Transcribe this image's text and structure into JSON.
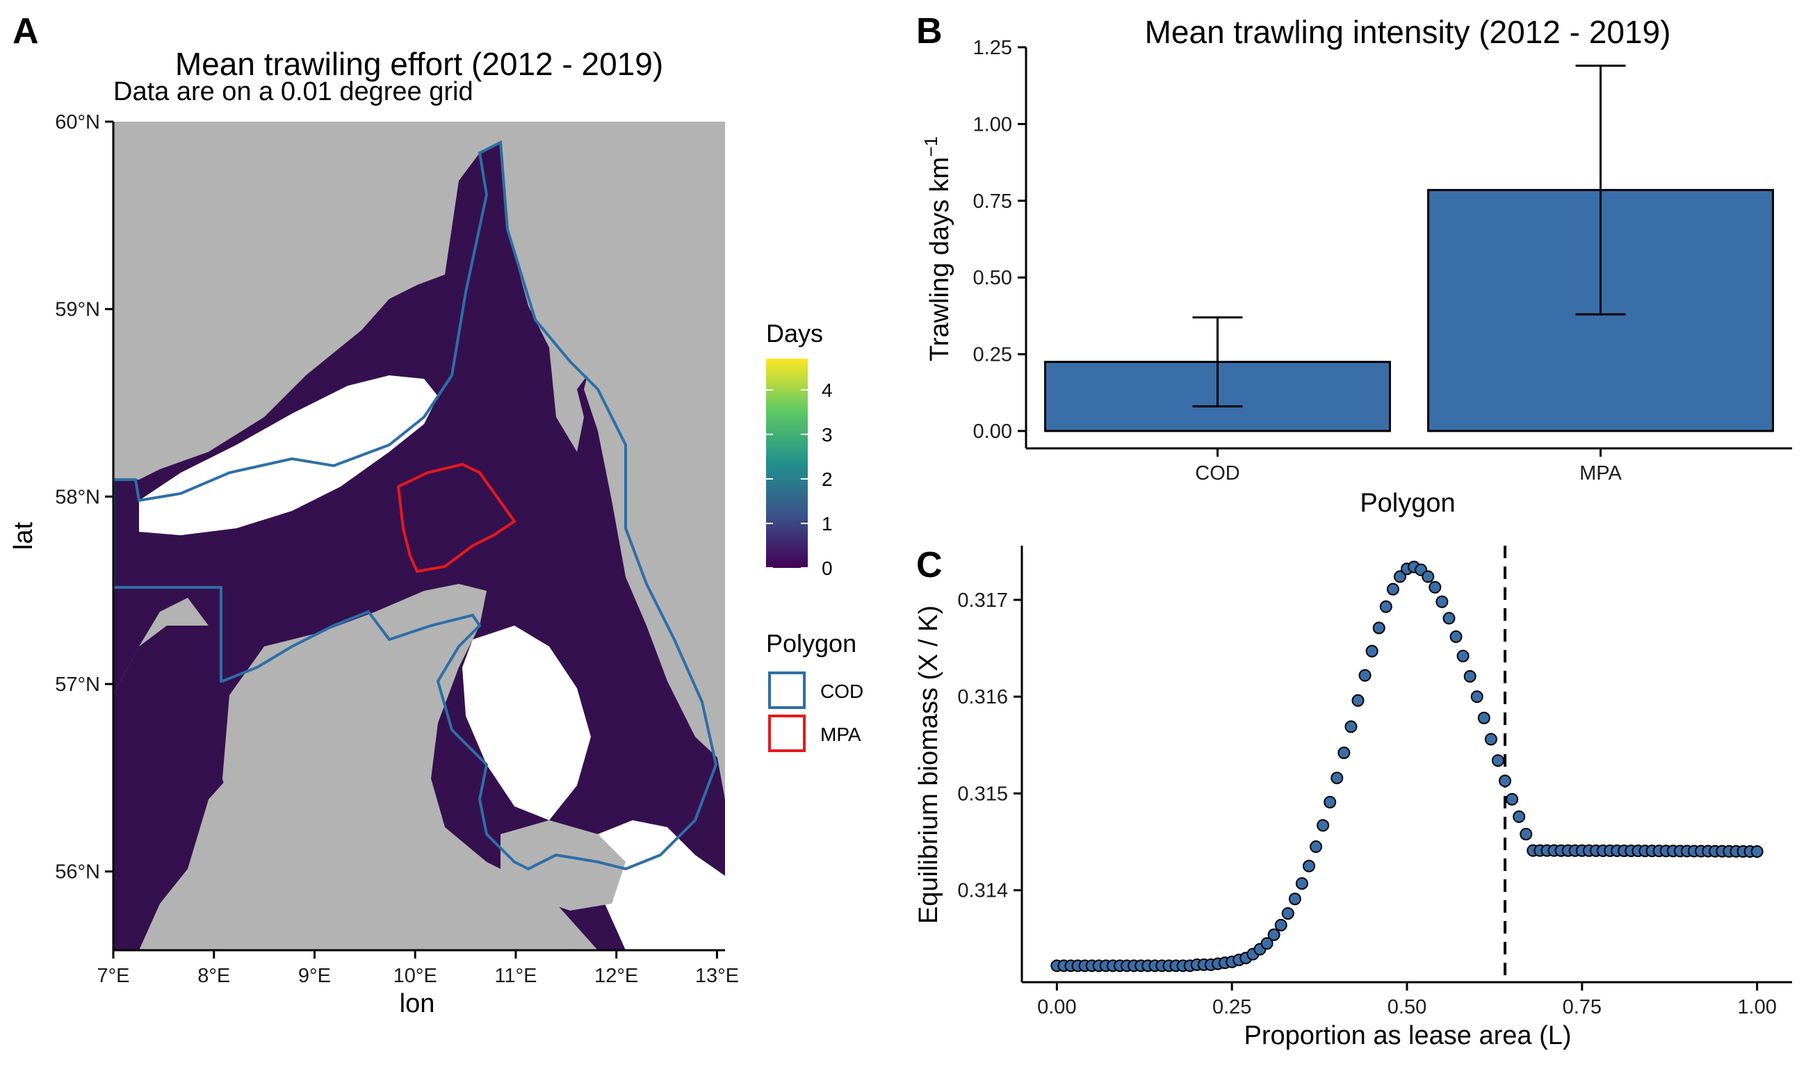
{
  "panels": {
    "A": {
      "letter": "A",
      "title": "Mean trawiling effort (2012 - 2019)",
      "subtitle": "Data are on a 0.01 degree grid",
      "xlabel": "lon",
      "ylabel": "lat",
      "x_ticks": [
        "7°E",
        "8°E",
        "9°E",
        "10°E",
        "11°E",
        "12°E",
        "13°E"
      ],
      "y_ticks": [
        "56°N",
        "57°N",
        "58°N",
        "59°N",
        "60°N"
      ],
      "legend_fill": {
        "title": "Days",
        "ticks": [
          "0",
          "1",
          "2",
          "3",
          "4"
        ],
        "colors": [
          "#440154",
          "#3b528b",
          "#21918c",
          "#5ec962",
          "#fde725"
        ]
      },
      "legend_polygon": {
        "title": "Polygon",
        "items": [
          {
            "label": "COD",
            "color": "#2e6ea6"
          },
          {
            "label": "MPA",
            "color": "#e31a1c"
          }
        ]
      },
      "colors": {
        "land": "#b3b3b3",
        "sea_effort": "#3b0f55",
        "no_data": "#ffffff"
      }
    },
    "B": {
      "letter": "B",
      "title": "Mean trawling intensity (2012 - 2019)",
      "xlabel": "Polygon",
      "ylabel_main": "Trawling days km",
      "ylabel_sup": "−1",
      "y_ticks": [
        "0.00",
        "0.25",
        "0.50",
        "0.75",
        "1.00",
        "1.25"
      ]
    },
    "C": {
      "letter": "C",
      "xlabel": "Proportion as lease area (L)",
      "ylabel": "Equilibrium biomass (X / K)",
      "x_ticks": [
        "0.00",
        "0.25",
        "0.50",
        "0.75",
        "1.00"
      ],
      "y_ticks": [
        "0.314",
        "0.315",
        "0.316",
        "0.317"
      ]
    }
  },
  "chart_data": [
    {
      "panel": "B",
      "type": "bar",
      "categories": [
        "COD",
        "MPA"
      ],
      "values": [
        0.225,
        0.785
      ],
      "error_low": [
        0.08,
        0.38
      ],
      "error_high": [
        0.37,
        1.19
      ],
      "ylim": [
        0,
        1.25
      ],
      "bar_color": "#3a6ea8",
      "grid": false
    },
    {
      "panel": "C",
      "type": "scatter",
      "x_start": 0.0,
      "x_step": 0.01,
      "y": [
        0.31322,
        0.31322,
        0.31322,
        0.31322,
        0.31322,
        0.31322,
        0.31322,
        0.31322,
        0.31322,
        0.31322,
        0.31322,
        0.31322,
        0.31322,
        0.31322,
        0.31322,
        0.31322,
        0.31322,
        0.31322,
        0.31322,
        0.31322,
        0.31323,
        0.31323,
        0.31323,
        0.31324,
        0.31325,
        0.31326,
        0.31328,
        0.3133,
        0.31334,
        0.31339,
        0.31345,
        0.31354,
        0.31364,
        0.31376,
        0.31391,
        0.31407,
        0.31425,
        0.31445,
        0.31467,
        0.31491,
        0.31516,
        0.31542,
        0.31569,
        0.31596,
        0.31622,
        0.31647,
        0.31671,
        0.31693,
        0.31711,
        0.31724,
        0.31732,
        0.31734,
        0.31731,
        0.31724,
        0.31713,
        0.31698,
        0.31681,
        0.31662,
        0.31642,
        0.31621,
        0.316,
        0.31578,
        0.31556,
        0.31534,
        0.31513,
        0.31494,
        0.31476,
        0.31458,
        0.31441
      ],
      "x_max": 1.0,
      "vline_x": 0.64,
      "xlim": [
        -0.05,
        1.05
      ],
      "ylim": [
        0.31305,
        0.31756
      ],
      "point_color": "#3a6ea8"
    }
  ]
}
